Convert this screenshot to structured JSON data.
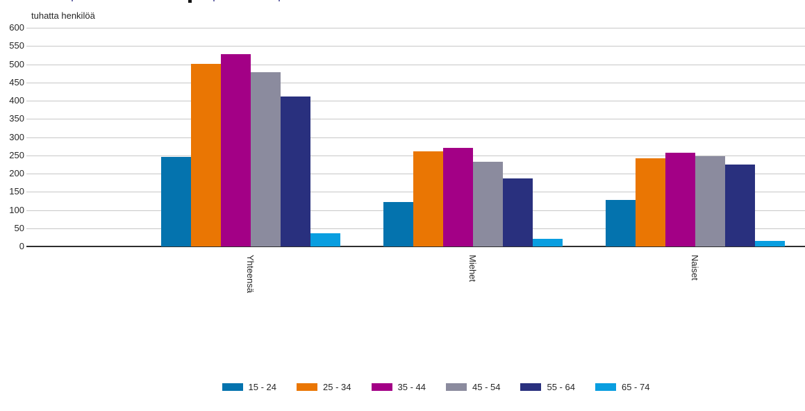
{
  "chart_data": {
    "type": "bar",
    "title": "",
    "ylabel": "tuhatta henkilöä",
    "xlabel": "",
    "ylim": [
      0,
      600
    ],
    "ytick_step": 50,
    "grid": true,
    "legend_position": "bottom",
    "categories": [
      "Yhteensä",
      "Miehet",
      "Naiset"
    ],
    "series": [
      {
        "name": "15 - 24",
        "color": "#0473ae",
        "values": [
          245,
          122,
          127
        ]
      },
      {
        "name": "25 - 34",
        "color": "#ea7603",
        "values": [
          501,
          261,
          242
        ]
      },
      {
        "name": "35 - 44",
        "color": "#a30086",
        "values": [
          528,
          270,
          258
        ]
      },
      {
        "name": "45 - 54",
        "color": "#8b8b9e",
        "values": [
          478,
          232,
          248
        ]
      },
      {
        "name": "55 - 64",
        "color": "#29307e",
        "values": [
          412,
          186,
          225
        ]
      },
      {
        "name": "65 - 74",
        "color": "#099ee0",
        "values": [
          37,
          20,
          16
        ]
      }
    ],
    "colors": {
      "gridline": "#c7c7c7",
      "axis_line": "#2e2e2e",
      "text": "#262626"
    }
  }
}
